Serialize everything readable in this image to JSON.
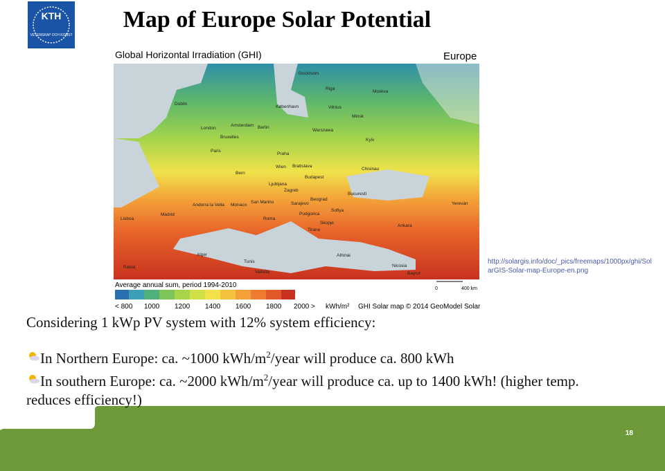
{
  "logo": {
    "name": "KTH",
    "motto": "VETENSKAP OCH KONST"
  },
  "title": "Map of Europe Solar Potential",
  "map": {
    "heading": "Global Horizontal Irradiation (GHI)",
    "region": "Europe",
    "cities": [
      "Stockholm",
      "Riga",
      "Moskva",
      "Dublin",
      "København",
      "Vilnius",
      "Minsk",
      "London",
      "Amsterdam",
      "Berlin",
      "Warszawa",
      "Bruxelles",
      "Kyiv",
      "Paris",
      "Praha",
      "Wien",
      "Bratislava",
      "Chisinau",
      "Bern",
      "Budapest",
      "Ljubljana",
      "Zagreb",
      "Bucuresti",
      "Beograd",
      "Sarajevo",
      "Monaco",
      "Sofiya",
      "Podgorica",
      "Skopje",
      "Madrid",
      "Roma",
      "Tirane",
      "Ankara",
      "Lisboa",
      "Andorra la Vella",
      "San Marino",
      "Yerevan",
      "Alger",
      "Tunis",
      "Athinai",
      "Valletta",
      "Nicosia",
      "Rabat",
      "Bayrut"
    ],
    "legend_title": "Average annual sum, period 1994-2010",
    "legend_labels": [
      "< 800",
      "1000",
      "1200",
      "1400",
      "1600",
      "1800",
      "2000 >"
    ],
    "legend_unit": "kWh/m²",
    "credit": "GHI Solar map © 2014 GeoModel Solar",
    "scale": [
      "0",
      "400 km"
    ]
  },
  "source": "http://solargis.info/doc/_pics/freemaps/1000px/ghi/SolarGIS-Solar-map-Europe-en.png",
  "intro": "Considering 1 kWp PV system with 12% system efficiency:",
  "bullets": [
    [
      "In Northern Europe: ca. ~1000 kWh/m",
      "2",
      "/year will produce ca. 800 kWh"
    ],
    [
      "In southern Europe: ca. ~2000 kWh/m",
      "2",
      "/year will produce ca. up to 1400 kWh! (higher temp.",
      "reduces efficiency!)"
    ]
  ],
  "page_number": "18"
}
